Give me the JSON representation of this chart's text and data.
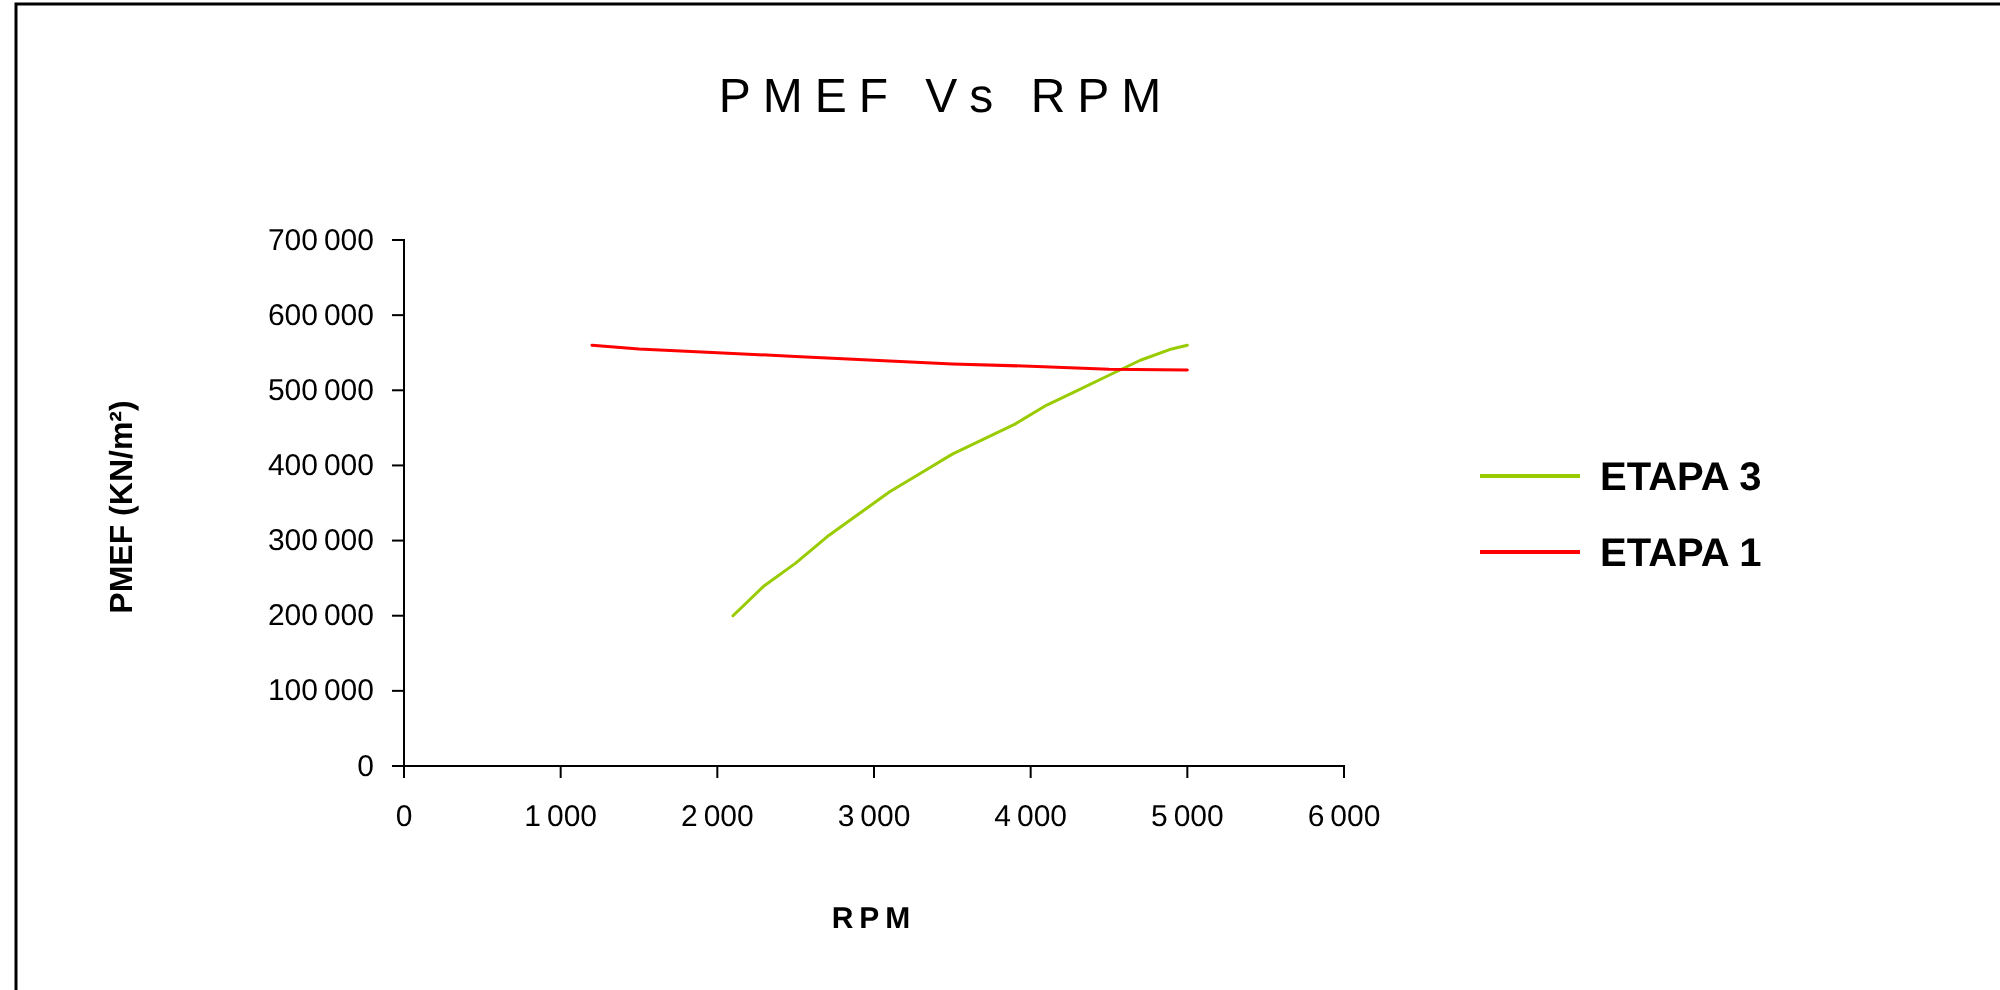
{
  "chart_data": {
    "type": "line",
    "title": "PMEF Vs RPM",
    "xlabel": "RPM",
    "ylabel": "PMEF (KN/m²)",
    "xlim": [
      0,
      6000
    ],
    "xticks": [
      0,
      1000,
      2000,
      3000,
      4000,
      5000,
      6000
    ],
    "ylim": [
      0,
      700000
    ],
    "yticks": [
      0,
      100000,
      200000,
      300000,
      400000,
      500000,
      600000,
      700000
    ],
    "grid": false,
    "legend": "right",
    "series": [
      {
        "name": "ETAPA 3",
        "color": "#99cc00",
        "x": [
          2100,
          2300,
          2500,
          2700,
          2900,
          3100,
          3300,
          3500,
          3700,
          3900,
          4100,
          4300,
          4500,
          4700,
          4900,
          5000
        ],
        "values": [
          200000,
          240000,
          270000,
          305000,
          335000,
          365000,
          390000,
          415000,
          435000,
          455000,
          480000,
          500000,
          520000,
          540000,
          555000,
          560000
        ]
      },
      {
        "name": "ETAPA 1",
        "color": "#ff0000",
        "x": [
          1200,
          1500,
          2000,
          2500,
          3000,
          3500,
          4000,
          4500,
          5000
        ],
        "values": [
          560000,
          555000,
          550000,
          545000,
          540000,
          535000,
          532000,
          528000,
          527000
        ]
      }
    ]
  }
}
